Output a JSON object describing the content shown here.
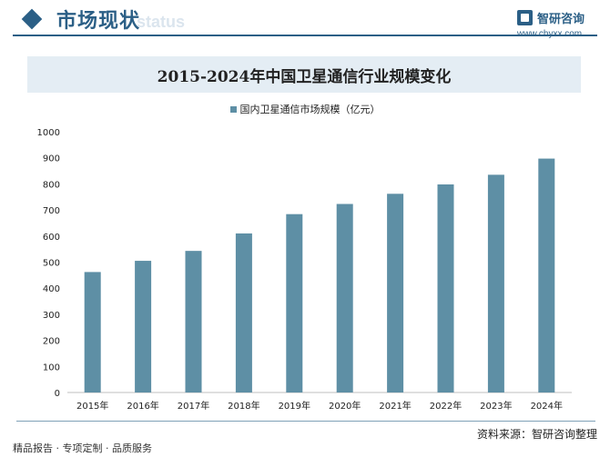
{
  "header": {
    "section_title": "市场现状",
    "section_watermark": "status",
    "logo_text": "智研咨询",
    "logo_url": "www.chyxx.com"
  },
  "chart_data": {
    "type": "bar",
    "title": "2015-2024年中国卫星通信行业规模变化",
    "categories": [
      "2015年",
      "2016年",
      "2017年",
      "2018年",
      "2019年",
      "2020年",
      "2021年",
      "2022年",
      "2023年",
      "2024年"
    ],
    "series": [
      {
        "name": "国内卫星通信市场规模（亿元）",
        "values": [
          462,
          505,
          543,
          610,
          684,
          723,
          762,
          798,
          835,
          897
        ]
      }
    ],
    "y_ticks": [
      0,
      100,
      200,
      300,
      400,
      500,
      600,
      700,
      800,
      900,
      1000
    ],
    "ylim": [
      0,
      1000
    ],
    "grid": false,
    "legend_position": "top-center",
    "bar_color": "#5e8fa5"
  },
  "footer": {
    "source": "资料来源：智研咨询整理",
    "tagline": "精品报告 · 专项定制 · 品质服务"
  }
}
